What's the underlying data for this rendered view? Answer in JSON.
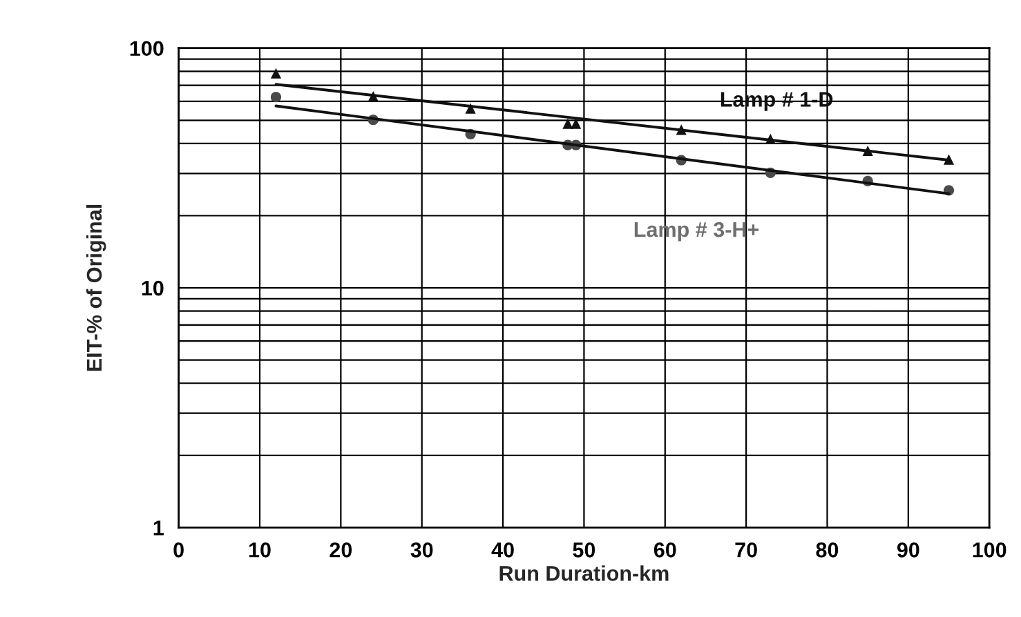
{
  "chart_data": {
    "type": "scatter",
    "xlabel": "Run Duration-km",
    "ylabel": "EIT-% of Original",
    "log": "y",
    "grid": true,
    "legend": false,
    "xlim": [
      0,
      100
    ],
    "xticks": [
      0,
      10,
      20,
      30,
      40,
      50,
      60,
      70,
      80,
      90,
      100
    ],
    "ylim": [
      1,
      100
    ],
    "yticks": [
      1,
      10,
      100
    ],
    "series": [
      {
        "name": "Lamp # 1-D",
        "color": "#111111",
        "marker": "triangle",
        "x": [
          12,
          24,
          36,
          48,
          49,
          62,
          73,
          85,
          95
        ],
        "values": [
          78.5,
          62.9,
          56,
          48.4,
          48.4,
          45.7,
          41.8,
          37.3,
          34.3
        ]
      },
      {
        "name": "Lamp # 3-H+",
        "color": "#4a4a4a",
        "marker": "circle",
        "x": [
          12,
          24,
          36,
          48,
          49,
          62,
          73,
          85,
          95
        ],
        "values": [
          62.5,
          50.2,
          43.8,
          39.4,
          39.4,
          34.1,
          30.2,
          27.9,
          25.5
        ]
      },
      {
        "type": "line",
        "color": "#111111",
        "marker": "none",
        "x": [
          12,
          95
        ],
        "values": [
          70.6,
          34.1
        ]
      },
      {
        "type": "line",
        "color": "#111111",
        "marker": "none",
        "x": [
          12,
          95
        ],
        "values": [
          57.4,
          24.7
        ]
      }
    ]
  }
}
